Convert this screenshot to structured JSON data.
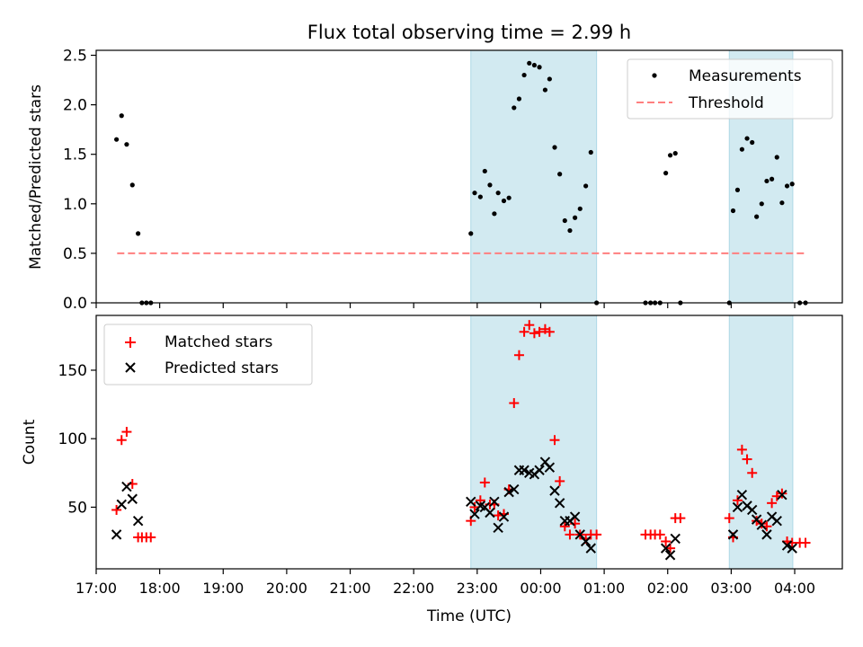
{
  "figure": {
    "title": "Flux total observing time = 2.99 h"
  },
  "colors": {
    "measurement": "#000000",
    "threshold": "#ff7f7f",
    "matched": "#ff0000",
    "predicted": "#000000",
    "shade": "#add8e6"
  },
  "chart_data": [
    {
      "type": "scatter",
      "panel": "top",
      "title": "Flux total observing time = 2.99 h",
      "xlabel": "",
      "ylabel": "Matched/Predicted stars",
      "xlim": [
        17.0,
        28.75
      ],
      "ylim": [
        0,
        2.55
      ],
      "yticks": [
        0.0,
        0.5,
        1.0,
        1.5,
        2.0,
        2.5
      ],
      "ytick_labels": [
        "0.0",
        "0.5",
        "1.0",
        "1.5",
        "2.0",
        "2.5"
      ],
      "legend": {
        "position": "top-right",
        "entries": [
          "Measurements",
          "Threshold"
        ]
      },
      "shaded_intervals": [
        [
          22.9,
          24.88
        ],
        [
          26.97,
          27.97
        ]
      ],
      "threshold": {
        "name": "Threshold",
        "value": 0.5,
        "x_start": 17.33,
        "x_end": 28.17
      },
      "series": [
        {
          "name": "Measurements",
          "points": [
            [
              17.32,
              1.65
            ],
            [
              17.4,
              1.89
            ],
            [
              17.48,
              1.6
            ],
            [
              17.57,
              1.19
            ],
            [
              17.66,
              0.7
            ],
            [
              17.72,
              0.0
            ],
            [
              17.79,
              0.0
            ],
            [
              17.86,
              0.0
            ],
            [
              22.9,
              0.7
            ],
            [
              22.96,
              1.11
            ],
            [
              23.05,
              1.07
            ],
            [
              23.12,
              1.33
            ],
            [
              23.2,
              1.19
            ],
            [
              23.27,
              0.9
            ],
            [
              23.33,
              1.11
            ],
            [
              23.42,
              1.03
            ],
            [
              23.5,
              1.06
            ],
            [
              23.58,
              1.97
            ],
            [
              23.66,
              2.06
            ],
            [
              23.74,
              2.3
            ],
            [
              23.82,
              2.42
            ],
            [
              23.9,
              2.4
            ],
            [
              23.98,
              2.38
            ],
            [
              24.07,
              2.15
            ],
            [
              24.14,
              2.26
            ],
            [
              24.22,
              1.57
            ],
            [
              24.3,
              1.3
            ],
            [
              24.38,
              0.83
            ],
            [
              24.46,
              0.73
            ],
            [
              24.54,
              0.86
            ],
            [
              24.62,
              0.95
            ],
            [
              24.71,
              1.18
            ],
            [
              24.79,
              1.52
            ],
            [
              24.88,
              0.0
            ],
            [
              25.65,
              0.0
            ],
            [
              25.73,
              0.0
            ],
            [
              25.8,
              0.0
            ],
            [
              25.88,
              0.0
            ],
            [
              25.97,
              1.31
            ],
            [
              26.04,
              1.49
            ],
            [
              26.12,
              1.51
            ],
            [
              26.2,
              0.0
            ],
            [
              26.97,
              0.0
            ],
            [
              27.03,
              0.93
            ],
            [
              27.1,
              1.14
            ],
            [
              27.17,
              1.55
            ],
            [
              27.25,
              1.66
            ],
            [
              27.33,
              1.62
            ],
            [
              27.4,
              0.87
            ],
            [
              27.48,
              1.0
            ],
            [
              27.56,
              1.23
            ],
            [
              27.64,
              1.25
            ],
            [
              27.72,
              1.47
            ],
            [
              27.8,
              1.01
            ],
            [
              27.88,
              1.18
            ],
            [
              27.96,
              1.2
            ],
            [
              28.08,
              0.0
            ],
            [
              28.17,
              0.0
            ]
          ]
        }
      ]
    },
    {
      "type": "scatter",
      "panel": "bottom",
      "title": "",
      "xlabel": "Time (UTC)",
      "ylabel": "Count",
      "xlim": [
        17.0,
        28.75
      ],
      "ylim": [
        5,
        190
      ],
      "yticks": [
        50,
        100,
        150
      ],
      "ytick_labels": [
        "50",
        "100",
        "150"
      ],
      "xticks": [
        17,
        18,
        19,
        20,
        21,
        22,
        23,
        24,
        25,
        26,
        27,
        28
      ],
      "xtick_labels": [
        "17:00",
        "18:00",
        "19:00",
        "20:00",
        "21:00",
        "22:00",
        "23:00",
        "00:00",
        "01:00",
        "02:00",
        "03:00",
        "04:00"
      ],
      "legend": {
        "position": "top-left",
        "entries": [
          "Matched stars",
          "Predicted stars"
        ]
      },
      "shaded_intervals": [
        [
          22.9,
          24.88
        ],
        [
          26.97,
          27.97
        ]
      ],
      "series": [
        {
          "name": "Matched stars",
          "marker": "plus",
          "points": [
            [
              17.32,
              48
            ],
            [
              17.4,
              99
            ],
            [
              17.48,
              105
            ],
            [
              17.57,
              67
            ],
            [
              17.66,
              28
            ],
            [
              17.72,
              28
            ],
            [
              17.79,
              28
            ],
            [
              17.86,
              28
            ],
            [
              22.9,
              40
            ],
            [
              22.96,
              50
            ],
            [
              23.05,
              55
            ],
            [
              23.12,
              68
            ],
            [
              23.2,
              52
            ],
            [
              23.27,
              52
            ],
            [
              23.33,
              44
            ],
            [
              23.42,
              45
            ],
            [
              23.5,
              63
            ],
            [
              23.58,
              126
            ],
            [
              23.66,
              161
            ],
            [
              23.74,
              178
            ],
            [
              23.82,
              183
            ],
            [
              23.9,
              177
            ],
            [
              23.98,
              178
            ],
            [
              24.07,
              180
            ],
            [
              24.14,
              178
            ],
            [
              24.22,
              99
            ],
            [
              24.3,
              69
            ],
            [
              24.38,
              36
            ],
            [
              24.46,
              30
            ],
            [
              24.54,
              38
            ],
            [
              24.62,
              30
            ],
            [
              24.71,
              27
            ],
            [
              24.79,
              30
            ],
            [
              24.88,
              30
            ],
            [
              25.65,
              30
            ],
            [
              25.73,
              30
            ],
            [
              25.8,
              30
            ],
            [
              25.88,
              30
            ],
            [
              25.97,
              25
            ],
            [
              26.04,
              20
            ],
            [
              26.12,
              42
            ],
            [
              26.2,
              42
            ],
            [
              26.97,
              42
            ],
            [
              27.03,
              28
            ],
            [
              27.1,
              55
            ],
            [
              27.17,
              92
            ],
            [
              27.25,
              85
            ],
            [
              27.33,
              75
            ],
            [
              27.4,
              40
            ],
            [
              27.48,
              38
            ],
            [
              27.56,
              36
            ],
            [
              27.64,
              53
            ],
            [
              27.72,
              58
            ],
            [
              27.8,
              60
            ],
            [
              27.88,
              25
            ],
            [
              27.96,
              24
            ],
            [
              28.08,
              24
            ],
            [
              28.17,
              24
            ]
          ]
        },
        {
          "name": "Predicted stars",
          "marker": "x",
          "points": [
            [
              17.32,
              30
            ],
            [
              17.4,
              52
            ],
            [
              17.48,
              65
            ],
            [
              17.57,
              56
            ],
            [
              17.66,
              40
            ],
            [
              22.9,
              54
            ],
            [
              22.96,
              45
            ],
            [
              23.05,
              51
            ],
            [
              23.12,
              50
            ],
            [
              23.2,
              46
            ],
            [
              23.27,
              54
            ],
            [
              23.33,
              35
            ],
            [
              23.42,
              43
            ],
            [
              23.5,
              61
            ],
            [
              23.58,
              63
            ],
            [
              23.66,
              77
            ],
            [
              23.74,
              77
            ],
            [
              23.82,
              75
            ],
            [
              23.9,
              74
            ],
            [
              23.98,
              77
            ],
            [
              24.07,
              83
            ],
            [
              24.14,
              79
            ],
            [
              24.22,
              62
            ],
            [
              24.3,
              53
            ],
            [
              24.38,
              40
            ],
            [
              24.46,
              40
            ],
            [
              24.54,
              43
            ],
            [
              24.62,
              30
            ],
            [
              24.71,
              25
            ],
            [
              24.79,
              20
            ],
            [
              25.97,
              20
            ],
            [
              26.04,
              15
            ],
            [
              26.12,
              27
            ],
            [
              27.03,
              30
            ],
            [
              27.1,
              50
            ],
            [
              27.17,
              59
            ],
            [
              27.25,
              51
            ],
            [
              27.33,
              48
            ],
            [
              27.4,
              41
            ],
            [
              27.48,
              37
            ],
            [
              27.56,
              30
            ],
            [
              27.64,
              43
            ],
            [
              27.72,
              40
            ],
            [
              27.8,
              59
            ],
            [
              27.88,
              22
            ],
            [
              27.96,
              20
            ]
          ]
        }
      ]
    }
  ]
}
